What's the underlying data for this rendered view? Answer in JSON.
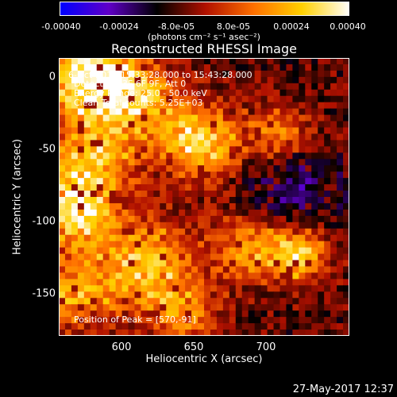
{
  "colorbar": {
    "ticks": [
      "-0.00040",
      "-0.00024",
      "-8.0e-05",
      "8.0e-05",
      "0.00024",
      "0.00040"
    ],
    "units": "(photons cm⁻² s⁻¹ asec⁻²)",
    "min": -0.0004,
    "max": 0.0004,
    "colors": [
      "#0000ff",
      "#6000c8",
      "#000000",
      "#b01000",
      "#ff7000",
      "#ffd000",
      "#ffffff"
    ]
  },
  "title": "Reconstructed RHESSI Image",
  "xlabel": "Heliocentric X (arcsec)",
  "ylabel": "Heliocentric Y (arcsec)",
  "xticks": [
    "600",
    "650",
    "700"
  ],
  "yticks": [
    "0",
    "-50",
    "-100",
    "-150"
  ],
  "annotations": {
    "time": "6-Oct-2014 15:33:28.000 to 15:43:28.000",
    "detectors": "Detectors: 3F 6F 9F, Att 0",
    "energy": "Energy Range: 25.0 - 50.0 keV",
    "method": "Clean    Total counts: 5.25E+03",
    "peak": "Position of Peak = [570,-91]"
  },
  "timestamp": "27-May-2017 12:37",
  "image": {
    "x_range": [
      560,
      745
    ],
    "y_range": [
      -180,
      12
    ],
    "grid_cols": 46,
    "grid_rows": 44,
    "hotspots": [
      {
        "x": 575,
        "y": 0,
        "amp": 1.0,
        "r": 20
      },
      {
        "x": 605,
        "y": -15,
        "amp": 0.9,
        "r": 20
      },
      {
        "x": 580,
        "y": -60,
        "amp": 0.8,
        "r": 20
      },
      {
        "x": 570,
        "y": -95,
        "amp": 1.0,
        "r": 16
      },
      {
        "x": 650,
        "y": -45,
        "amp": 0.95,
        "r": 18
      },
      {
        "x": 615,
        "y": -130,
        "amp": 0.85,
        "r": 22
      },
      {
        "x": 570,
        "y": -150,
        "amp": 0.7,
        "r": 18
      },
      {
        "x": 712,
        "y": -123,
        "amp": 0.95,
        "r": 14
      },
      {
        "x": 700,
        "y": -40,
        "amp": 0.55,
        "r": 14
      },
      {
        "x": 680,
        "y": -120,
        "amp": 0.6,
        "r": 16
      },
      {
        "x": 640,
        "y": -165,
        "amp": 0.55,
        "r": 16
      }
    ],
    "cool_region": {
      "x": 710,
      "y": -80,
      "r": 45
    }
  }
}
